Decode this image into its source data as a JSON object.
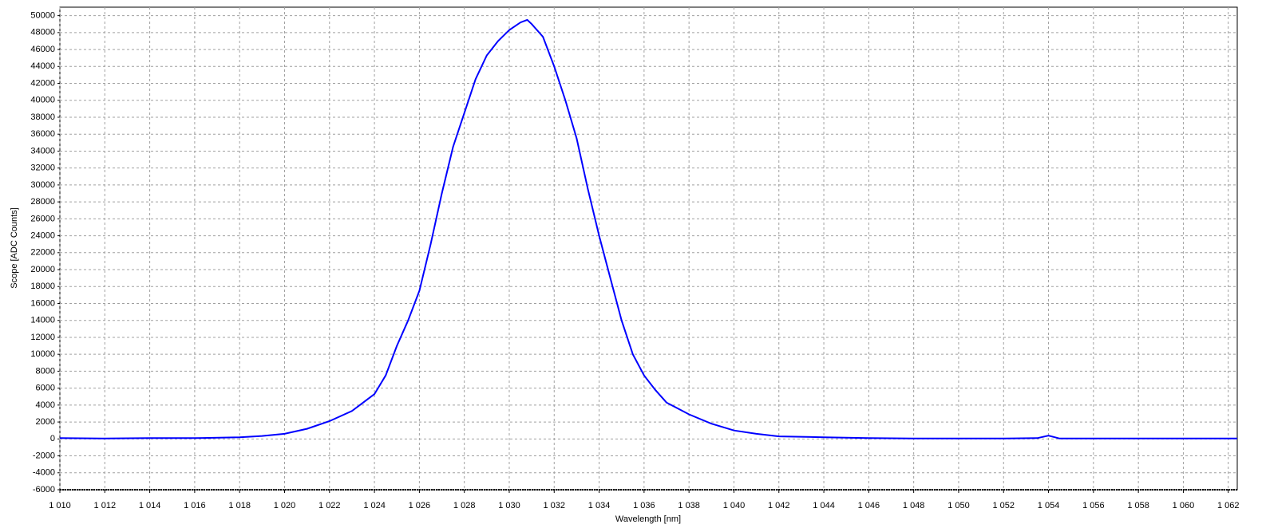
{
  "chart_data": {
    "type": "line",
    "x_label": "Wavelength [nm]",
    "y_label": "Scope [ADC Counts]",
    "color": "#0000ff",
    "grid": true,
    "xlim": [
      1010,
      1062.4
    ],
    "ylim": [
      -6000,
      51000
    ],
    "xticks": [
      {
        "value": 1010,
        "label": "1 010"
      },
      {
        "value": 1012,
        "label": "1 012"
      },
      {
        "value": 1014,
        "label": "1 014"
      },
      {
        "value": 1016,
        "label": "1 016"
      },
      {
        "value": 1018,
        "label": "1 018"
      },
      {
        "value": 1020,
        "label": "1 020"
      },
      {
        "value": 1022,
        "label": "1 022"
      },
      {
        "value": 1024,
        "label": "1 024"
      },
      {
        "value": 1026,
        "label": "1 026"
      },
      {
        "value": 1028,
        "label": "1 028"
      },
      {
        "value": 1030,
        "label": "1 030"
      },
      {
        "value": 1032,
        "label": "1 032"
      },
      {
        "value": 1034,
        "label": "1 034"
      },
      {
        "value": 1036,
        "label": "1 036"
      },
      {
        "value": 1038,
        "label": "1 038"
      },
      {
        "value": 1040,
        "label": "1 040"
      },
      {
        "value": 1042,
        "label": "1 042"
      },
      {
        "value": 1044,
        "label": "1 044"
      },
      {
        "value": 1046,
        "label": "1 046"
      },
      {
        "value": 1048,
        "label": "1 048"
      },
      {
        "value": 1050,
        "label": "1 050"
      },
      {
        "value": 1052,
        "label": "1 052"
      },
      {
        "value": 1054,
        "label": "1 054"
      },
      {
        "value": 1056,
        "label": "1 056"
      },
      {
        "value": 1058,
        "label": "1 058"
      },
      {
        "value": 1060,
        "label": "1 060"
      },
      {
        "value": 1062,
        "label": "1 062"
      }
    ],
    "yticks": [
      -6000,
      -4000,
      -2000,
      0,
      2000,
      4000,
      6000,
      8000,
      10000,
      12000,
      14000,
      16000,
      18000,
      20000,
      22000,
      24000,
      26000,
      28000,
      30000,
      32000,
      34000,
      36000,
      38000,
      40000,
      42000,
      44000,
      46000,
      48000,
      50000
    ],
    "x": [
      1010,
      1012,
      1014,
      1016,
      1018,
      1019,
      1020,
      1021,
      1022,
      1023,
      1024,
      1024.5,
      1025,
      1025.5,
      1026,
      1026.5,
      1027,
      1027.5,
      1028,
      1028.5,
      1029,
      1029.5,
      1030,
      1030.5,
      1030.8,
      1031,
      1031.5,
      1032,
      1032.5,
      1033,
      1033.5,
      1034,
      1034.5,
      1035,
      1035.5,
      1036,
      1036.5,
      1037,
      1038,
      1039,
      1040,
      1041,
      1042,
      1044,
      1046,
      1048,
      1050,
      1052,
      1053.5,
      1054,
      1054.5,
      1056,
      1058,
      1060,
      1062,
      1062.4
    ],
    "values": [
      100,
      50,
      100,
      100,
      200,
      350,
      600,
      1200,
      2100,
      3300,
      5300,
      7500,
      11000,
      14000,
      17500,
      23000,
      29000,
      34500,
      38500,
      42500,
      45300,
      47000,
      48300,
      49200,
      49500,
      49000,
      47500,
      44000,
      40000,
      35500,
      29500,
      24000,
      19000,
      14000,
      10000,
      7500,
      5800,
      4300,
      2900,
      1800,
      1000,
      600,
      300,
      200,
      100,
      50,
      50,
      50,
      100,
      400,
      50,
      50,
      50,
      50,
      50,
      50
    ]
  }
}
